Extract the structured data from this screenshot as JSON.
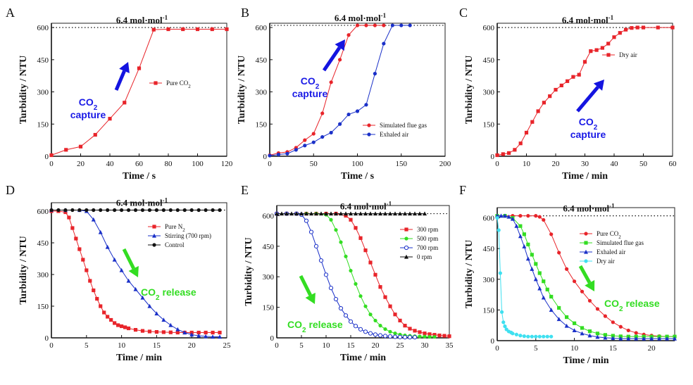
{
  "chart_data": [
    {
      "panel": "A",
      "type": "line",
      "xlabel": "Time / s",
      "ylabel": "Turbidity / NTU",
      "xlim": [
        0,
        120
      ],
      "ylim": [
        0,
        620
      ],
      "xticks": [
        0,
        20,
        40,
        60,
        80,
        100,
        120
      ],
      "yticks": [
        0,
        150,
        300,
        450,
        600
      ],
      "dotted_line": {
        "y": 600,
        "label": "6.4 mol·mol",
        "sup": "-1"
      },
      "series": [
        {
          "name": "Pure CO",
          "sub": "2",
          "color": "#e8242a",
          "marker": "square",
          "x": [
            0,
            10,
            20,
            30,
            40,
            50,
            60,
            70,
            80,
            90,
            100,
            110,
            120
          ],
          "y": [
            5,
            30,
            45,
            100,
            175,
            250,
            410,
            590,
            592,
            592,
            592,
            592,
            592
          ]
        }
      ],
      "legend_pos": "mid-right",
      "annotation": {
        "line1": "CO",
        "sub": "2",
        "line2": "capture",
        "color": "#1a1ae6"
      }
    },
    {
      "panel": "B",
      "type": "line",
      "xlabel": "Time / s",
      "ylabel": "Turbidity / NTU",
      "xlim": [
        0,
        200
      ],
      "ylim": [
        0,
        620
      ],
      "xticks": [
        0,
        50,
        100,
        150,
        200
      ],
      "yticks": [
        0,
        150,
        300,
        450,
        600
      ],
      "dotted_line": {
        "y": 610,
        "label": "6.4 mol·mol",
        "sup": "-1"
      },
      "series": [
        {
          "name": "Simulated flue gas",
          "color": "#e8242a",
          "marker": "circle",
          "x": [
            0,
            10,
            20,
            30,
            40,
            50,
            60,
            70,
            80,
            90,
            100,
            110,
            120,
            130
          ],
          "y": [
            5,
            15,
            20,
            40,
            75,
            105,
            200,
            345,
            450,
            565,
            610,
            610,
            610,
            610
          ]
        },
        {
          "name": "Exhaled air",
          "color": "#1a30c8",
          "marker": "circle",
          "x": [
            0,
            10,
            20,
            30,
            40,
            50,
            60,
            70,
            80,
            90,
            100,
            110,
            120,
            130,
            140,
            150,
            160
          ],
          "y": [
            3,
            8,
            12,
            30,
            50,
            65,
            90,
            110,
            150,
            195,
            210,
            240,
            385,
            525,
            610,
            610,
            610
          ]
        }
      ],
      "legend_pos": "lower-middle",
      "annotation": {
        "line1": "CO",
        "sub": "2",
        "line2": "capture",
        "color": "#1a1ae6"
      }
    },
    {
      "panel": "C",
      "type": "line",
      "xlabel": "Time / min",
      "ylabel": "Turbidity / NTU",
      "xlim": [
        0,
        60
      ],
      "ylim": [
        0,
        620
      ],
      "xticks": [
        0,
        10,
        20,
        30,
        40,
        50,
        60
      ],
      "yticks": [
        0,
        150,
        300,
        450,
        600
      ],
      "dotted_line": {
        "y": 600,
        "label": "6.4 mol·mol",
        "sup": "-1"
      },
      "series": [
        {
          "name": "Dry air",
          "color": "#e8242a",
          "marker": "square",
          "x": [
            0,
            2,
            4,
            6,
            8,
            10,
            12,
            14,
            16,
            18,
            20,
            22,
            24,
            26,
            28,
            30,
            32,
            34,
            36,
            38,
            40,
            42,
            44,
            46,
            48,
            50,
            55,
            60
          ],
          "y": [
            5,
            10,
            15,
            30,
            60,
            110,
            160,
            210,
            250,
            280,
            310,
            330,
            350,
            370,
            380,
            440,
            490,
            495,
            505,
            525,
            555,
            575,
            590,
            598,
            600,
            600,
            600,
            600
          ]
        }
      ],
      "legend_pos": "top-right",
      "annotation": {
        "line1": "CO",
        "sub": "2",
        "line2": "capture",
        "color": "#1a1ae6"
      }
    },
    {
      "panel": "D",
      "type": "line",
      "xlabel": "Time / min",
      "ylabel": "Turbidity / NTU",
      "xlim": [
        0,
        25
      ],
      "ylim": [
        0,
        640
      ],
      "xticks": [
        0,
        5,
        10,
        15,
        20,
        25
      ],
      "yticks": [
        0,
        150,
        300,
        450,
        600
      ],
      "dotted_line": {
        "y": 605,
        "label": "6.4 mol·mol",
        "sup": "-1"
      },
      "series": [
        {
          "name": "Pure N",
          "sub": "2",
          "color": "#e8242a",
          "marker": "square",
          "x": [
            0,
            1,
            2,
            2.5,
            3,
            3.5,
            4,
            4.5,
            5,
            5.5,
            6,
            6.5,
            7,
            7.5,
            8,
            8.5,
            9,
            9.5,
            10,
            10.5,
            11,
            12,
            13,
            14,
            15,
            16,
            17,
            18,
            19,
            20,
            21,
            22,
            23,
            24
          ],
          "y": [
            600,
            600,
            595,
            570,
            520,
            470,
            420,
            370,
            320,
            270,
            225,
            185,
            150,
            120,
            100,
            85,
            70,
            60,
            55,
            50,
            45,
            38,
            33,
            30,
            28,
            27,
            26,
            25,
            25,
            25,
            25,
            25,
            25,
            25
          ]
        },
        {
          "name": "Stirring (700 rpm)",
          "color": "#1a30c8",
          "marker": "triangle",
          "x": [
            0,
            2,
            4,
            5,
            6,
            7,
            8,
            9,
            10,
            11,
            12,
            13,
            14,
            15,
            16,
            17,
            18,
            19,
            20,
            21,
            22,
            23,
            24
          ],
          "y": [
            605,
            605,
            605,
            600,
            560,
            500,
            430,
            370,
            320,
            270,
            230,
            190,
            150,
            115,
            85,
            60,
            40,
            25,
            15,
            10,
            7,
            5,
            5
          ]
        },
        {
          "name": "Control",
          "color": "#111111",
          "marker": "circle",
          "x": [
            0,
            1,
            2,
            3,
            4,
            5,
            6,
            7,
            8,
            9,
            10,
            11,
            12,
            13,
            14,
            15,
            16,
            17,
            18,
            19,
            20,
            21,
            22,
            23,
            24
          ],
          "y": [
            605,
            605,
            605,
            605,
            605,
            605,
            605,
            605,
            605,
            605,
            605,
            605,
            605,
            605,
            605,
            605,
            605,
            605,
            605,
            605,
            605,
            605,
            605,
            605,
            605
          ]
        }
      ],
      "legend_pos": "top-right",
      "annotation": {
        "line1": "CO",
        "sub": "2",
        "line2": " release",
        "color": "#33dd22"
      }
    },
    {
      "panel": "E",
      "type": "line",
      "xlabel": "Time / min",
      "ylabel": "Turbidity / NTU",
      "xlim": [
        0,
        35
      ],
      "ylim": [
        0,
        650
      ],
      "xticks": [
        0,
        5,
        10,
        15,
        20,
        25,
        30,
        35
      ],
      "yticks": [
        0,
        150,
        300,
        450,
        600
      ],
      "dotted_line": {
        "y": 610,
        "label": "6.4 mol·mol",
        "sup": "-1"
      },
      "series": [
        {
          "name": "300 rpm",
          "color": "#e8242a",
          "marker": "square",
          "x": [
            0,
            2,
            4,
            6,
            8,
            10,
            12,
            14,
            15,
            16,
            17,
            18,
            19,
            20,
            21,
            22,
            23,
            24,
            25,
            26,
            27,
            28,
            29,
            30,
            31,
            32,
            33,
            34,
            35
          ],
          "y": [
            610,
            610,
            610,
            610,
            610,
            610,
            610,
            600,
            580,
            540,
            490,
            430,
            370,
            310,
            250,
            200,
            155,
            115,
            85,
            60,
            45,
            35,
            28,
            22,
            18,
            15,
            12,
            10,
            8
          ]
        },
        {
          "name": "500 rpm",
          "color": "#33dd22",
          "marker": "circle",
          "x": [
            0,
            2,
            4,
            6,
            8,
            10,
            11,
            12,
            13,
            14,
            15,
            16,
            17,
            18,
            19,
            20,
            21,
            22,
            23,
            24,
            25,
            26,
            27,
            28,
            29,
            30,
            31,
            32
          ],
          "y": [
            610,
            610,
            610,
            610,
            610,
            605,
            580,
            530,
            470,
            400,
            330,
            265,
            205,
            155,
            115,
            85,
            60,
            43,
            30,
            22,
            16,
            12,
            10,
            8,
            7,
            6,
            5,
            5
          ]
        },
        {
          "name": "700 rpm",
          "color": "#1a30c8",
          "marker": "circle-open",
          "x": [
            0,
            2,
            4,
            5,
            6,
            7,
            8,
            9,
            10,
            11,
            12,
            13,
            14,
            15,
            16,
            17,
            18,
            19,
            20,
            21,
            22,
            23,
            24,
            25,
            26,
            27,
            28
          ],
          "y": [
            610,
            610,
            610,
            605,
            575,
            520,
            450,
            380,
            310,
            245,
            190,
            145,
            110,
            80,
            58,
            42,
            30,
            22,
            16,
            12,
            9,
            7,
            5,
            4,
            3,
            3,
            3
          ]
        },
        {
          "name": "0 rpm",
          "color": "#111111",
          "marker": "triangle",
          "x": [
            0,
            1,
            2,
            3,
            4,
            5,
            6,
            7,
            8,
            9,
            10,
            11,
            12,
            13,
            14,
            15,
            16,
            17,
            18,
            19,
            20,
            21,
            22,
            23,
            24,
            25,
            26,
            27,
            28,
            29,
            30
          ],
          "y": [
            610,
            610,
            610,
            610,
            610,
            610,
            610,
            610,
            610,
            610,
            610,
            610,
            610,
            610,
            610,
            610,
            610,
            610,
            610,
            610,
            610,
            610,
            610,
            610,
            610,
            610,
            610,
            610,
            610,
            610,
            610
          ]
        }
      ],
      "legend_pos": "top-right",
      "annotation": {
        "line1": "CO",
        "sub": "2",
        "line2": " release",
        "color": "#33dd22"
      }
    },
    {
      "panel": "F",
      "type": "line",
      "xlabel": "Time / min",
      "ylabel": "Turbidity / NTU",
      "xlim": [
        0,
        23
      ],
      "ylim": [
        0,
        650
      ],
      "xticks": [
        0,
        5,
        10,
        15,
        20
      ],
      "yticks": [
        0,
        150,
        300,
        450,
        600
      ],
      "dotted_line": {
        "y": 610,
        "label": "6.4 mol·mol",
        "sup": "-1"
      },
      "series": [
        {
          "name": "Pure CO",
          "sub": "2",
          "color": "#e8242a",
          "marker": "circle",
          "x": [
            0,
            1,
            2,
            3,
            4,
            5,
            5.5,
            6,
            7,
            8,
            9,
            10,
            11,
            12,
            13,
            14,
            15,
            16,
            17,
            18,
            19,
            20,
            21,
            22,
            23
          ],
          "y": [
            610,
            610,
            610,
            610,
            610,
            610,
            605,
            590,
            520,
            430,
            350,
            290,
            240,
            195,
            155,
            120,
            90,
            68,
            50,
            38,
            30,
            25,
            22,
            20,
            20
          ]
        },
        {
          "name": "Simulated flue gas",
          "color": "#33dd22",
          "marker": "square",
          "x": [
            0,
            1,
            2,
            3,
            3.5,
            4,
            4.5,
            5,
            5.5,
            6,
            6.5,
            7,
            8,
            9,
            10,
            11,
            12,
            13,
            14,
            15,
            16,
            17,
            18,
            19,
            20,
            21,
            22,
            23
          ],
          "y": [
            610,
            610,
            600,
            560,
            520,
            470,
            420,
            375,
            330,
            290,
            250,
            215,
            160,
            115,
            85,
            62,
            46,
            35,
            28,
            24,
            21,
            20,
            20,
            20,
            20,
            20,
            20,
            20
          ]
        },
        {
          "name": "Exhaled air",
          "color": "#1a30c8",
          "marker": "triangle",
          "x": [
            0,
            0.5,
            1,
            1.5,
            2,
            2.5,
            3,
            3.5,
            4,
            4.5,
            5,
            5.5,
            6,
            7,
            8,
            9,
            10,
            11,
            12,
            13,
            14,
            15,
            16,
            17,
            18,
            19,
            20,
            21,
            22,
            23
          ],
          "y": [
            610,
            610,
            610,
            605,
            595,
            560,
            510,
            460,
            400,
            350,
            300,
            255,
            210,
            150,
            105,
            72,
            50,
            35,
            25,
            18,
            14,
            12,
            10,
            10,
            10,
            10,
            10,
            10,
            10,
            10
          ]
        },
        {
          "name": "Dry air",
          "color": "#3fe0f0",
          "marker": "circle",
          "x": [
            0,
            0.2,
            0.4,
            0.6,
            0.8,
            1,
            1.2,
            1.5,
            1.8,
            2,
            2.5,
            3,
            3.5,
            4,
            4.5,
            5,
            5.5,
            6,
            6.5,
            7
          ],
          "y": [
            600,
            540,
            330,
            140,
            90,
            70,
            55,
            45,
            40,
            35,
            30,
            25,
            22,
            20,
            20,
            20,
            20,
            20,
            20,
            20
          ]
        }
      ],
      "legend_pos": "mid-right",
      "annotation": {
        "line1": "CO",
        "sub": "2",
        "line2": " release",
        "color": "#33dd22"
      }
    }
  ]
}
